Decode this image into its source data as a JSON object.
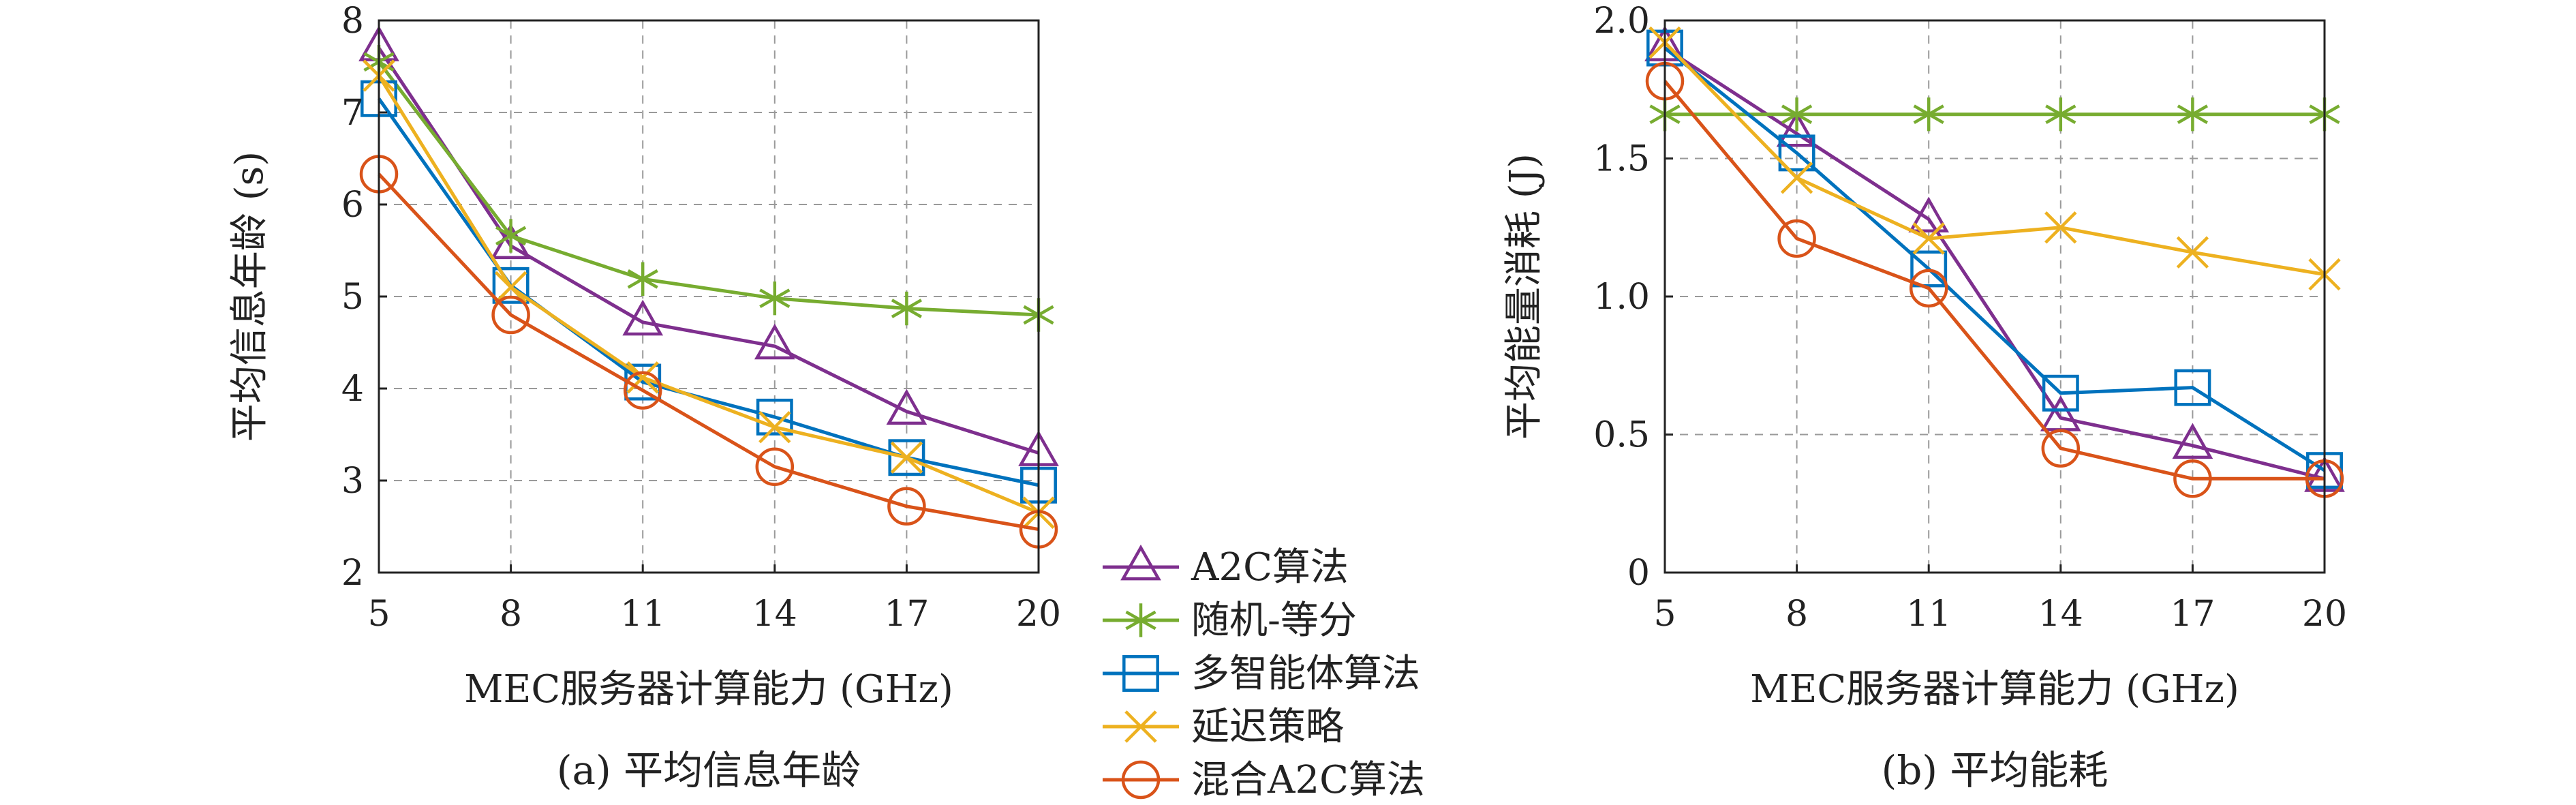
{
  "chart_data": [
    {
      "type": "line",
      "caption": "(a) 平均信息年龄",
      "xlabel": "MEC服务器计算能力 (GHz)",
      "ylabel": "平均信息年龄 (s)",
      "x": [
        5,
        8,
        11,
        14,
        17,
        20
      ],
      "xticks": [
        "5",
        "8",
        "11",
        "14",
        "17",
        "20"
      ],
      "ylim": [
        2,
        8
      ],
      "yticks": [
        "2",
        "3",
        "4",
        "5",
        "6",
        "7",
        "8"
      ],
      "grid": true,
      "series": [
        {
          "name": "A2C算法",
          "color": "#7E2F8E",
          "marker": "triangle",
          "values": [
            7.7,
            5.55,
            4.72,
            4.46,
            3.75,
            3.3
          ]
        },
        {
          "name": "随机-等分",
          "color": "#77AC30",
          "marker": "asterisk",
          "values": [
            7.55,
            5.66,
            5.19,
            4.98,
            4.87,
            4.8
          ]
        },
        {
          "name": "多智能体算法",
          "color": "#0072BD",
          "marker": "square",
          "values": [
            7.15,
            5.12,
            4.07,
            3.69,
            3.25,
            2.95
          ]
        },
        {
          "name": "延迟策略",
          "color": "#EDB120",
          "marker": "x",
          "values": [
            7.4,
            5.1,
            4.12,
            3.58,
            3.25,
            2.65
          ]
        },
        {
          "name": "混合A2C算法",
          "color": "#D95319",
          "marker": "circle",
          "values": [
            6.33,
            4.8,
            3.98,
            3.15,
            2.72,
            2.47
          ]
        }
      ]
    },
    {
      "type": "line",
      "caption": "(b) 平均能耗",
      "xlabel": "MEC服务器计算能力 (GHz)",
      "ylabel": "平均能量消耗 (J)",
      "x": [
        5,
        8,
        11,
        14,
        17,
        20
      ],
      "xticks": [
        "5",
        "8",
        "11",
        "14",
        "17",
        "20"
      ],
      "ylim": [
        0,
        2
      ],
      "yticks": [
        "0",
        "0.5",
        "1.0",
        "1.5",
        "2.0"
      ],
      "grid": true,
      "series": [
        {
          "name": "A2C算法",
          "color": "#7E2F8E",
          "marker": "triangle",
          "values": [
            1.9,
            1.59,
            1.28,
            0.56,
            0.46,
            0.34
          ]
        },
        {
          "name": "随机-等分",
          "color": "#77AC30",
          "marker": "asterisk",
          "values": [
            1.66,
            1.66,
            1.66,
            1.66,
            1.66,
            1.66
          ]
        },
        {
          "name": "多智能体算法",
          "color": "#0072BD",
          "marker": "square",
          "values": [
            1.9,
            1.52,
            1.1,
            0.65,
            0.67,
            0.37
          ]
        },
        {
          "name": "延迟策略",
          "color": "#EDB120",
          "marker": "x",
          "values": [
            1.92,
            1.43,
            1.21,
            1.25,
            1.16,
            1.08
          ]
        },
        {
          "name": "混合A2C算法",
          "color": "#D95319",
          "marker": "circle",
          "values": [
            1.78,
            1.21,
            1.03,
            0.45,
            0.34,
            0.34
          ]
        }
      ]
    }
  ],
  "legend": {
    "items": [
      "A2C算法",
      "随机-等分",
      "多智能体算法",
      "延迟策略",
      "混合A2C算法"
    ]
  }
}
